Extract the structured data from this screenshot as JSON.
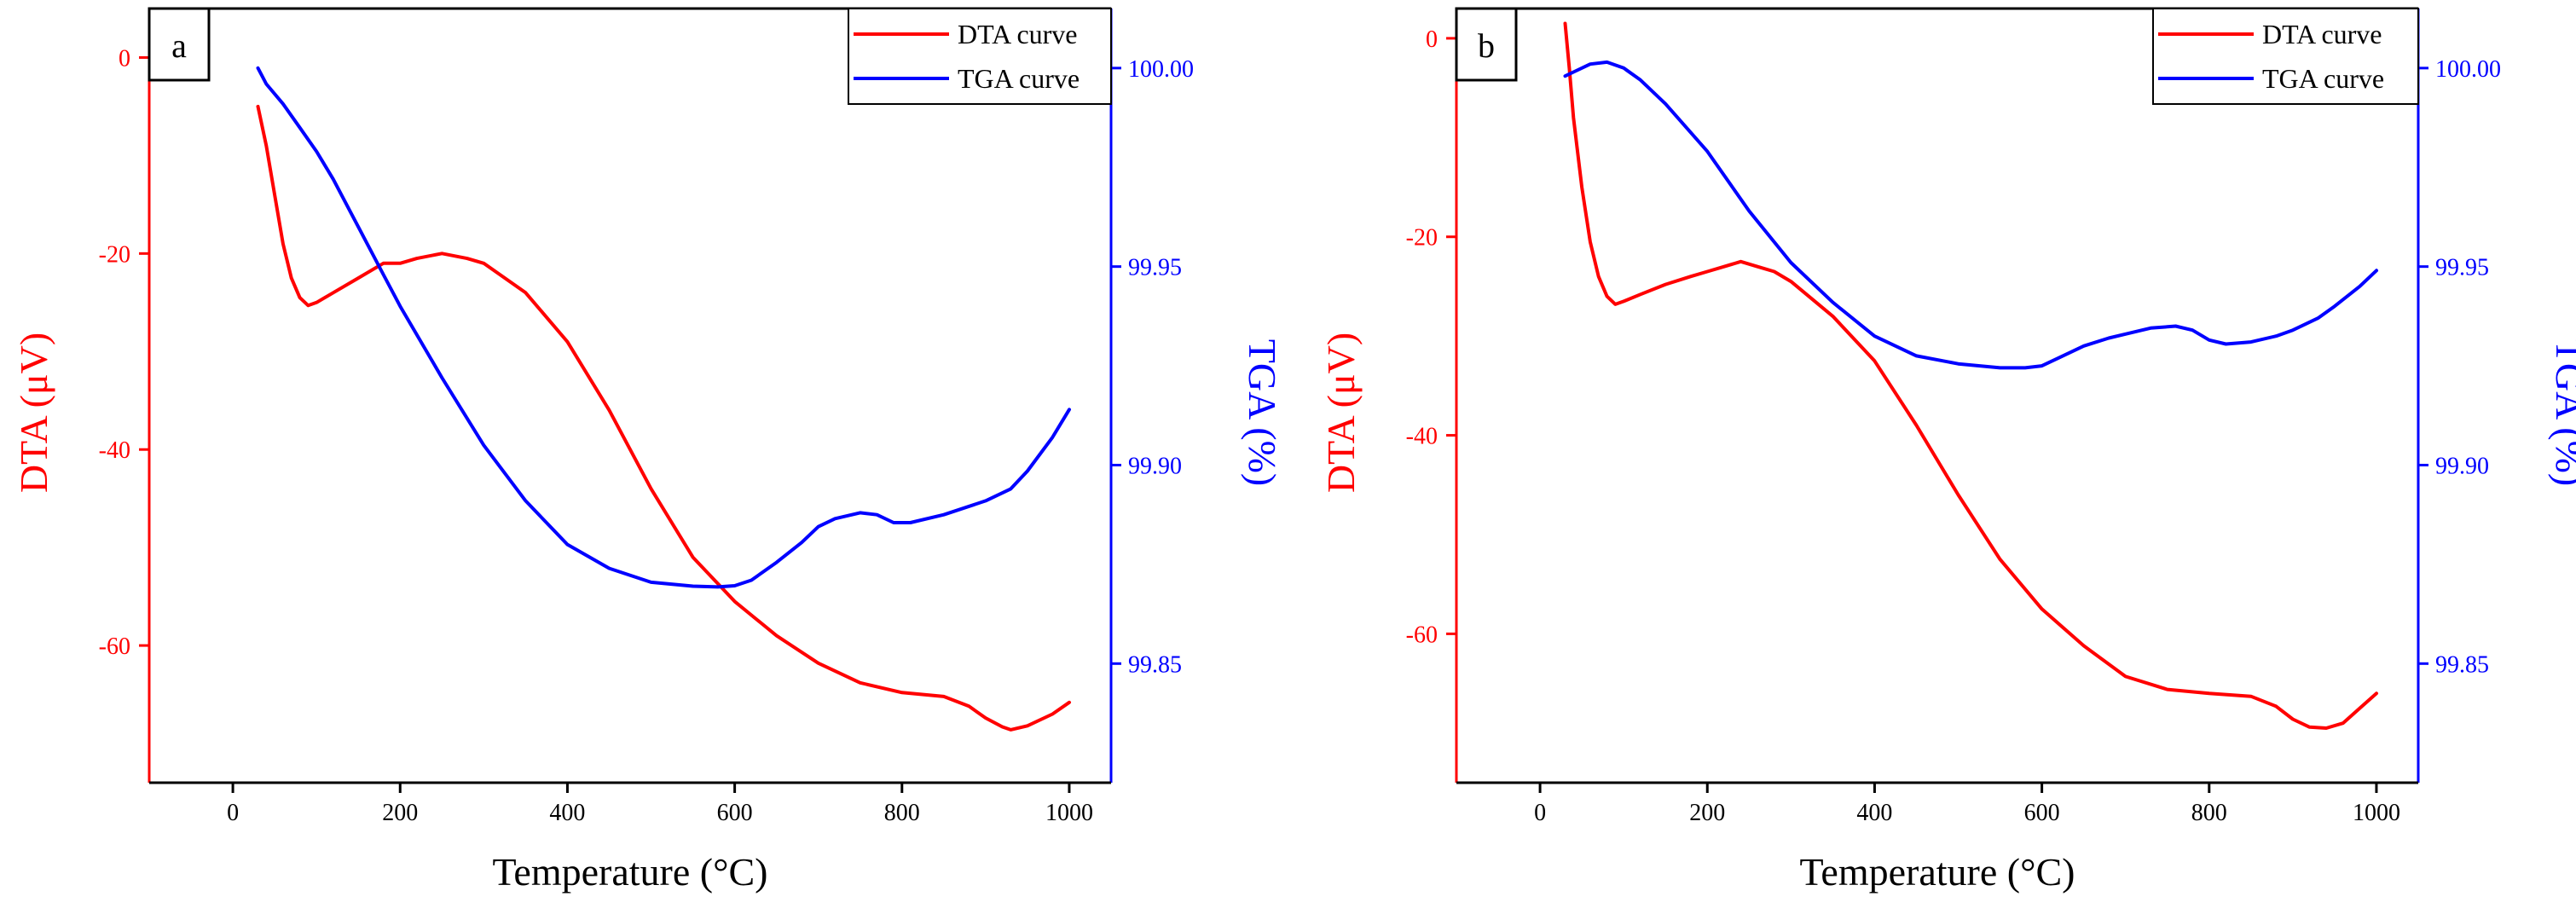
{
  "colors": {
    "dta": "#ff0000",
    "tga": "#0000ff",
    "axis": "#000000",
    "frame": "#000000"
  },
  "chart_data": [
    {
      "type": "line",
      "panel_label": "a",
      "xlabel": "Temperature (°C)",
      "ylabel_left": "DTA (μV)",
      "ylabel_right": "TGA (%)",
      "xlim": [
        -100,
        1050
      ],
      "ylim_left": [
        -74,
        5
      ],
      "ylim_right": [
        99.82,
        100.015
      ],
      "xticks": [
        0,
        200,
        400,
        600,
        800,
        1000
      ],
      "yticks_left": [
        0,
        -20,
        -40,
        -60
      ],
      "yticks_right": [
        "100.00",
        "99.95",
        "99.90",
        "99.85"
      ],
      "legend_position": "top-right",
      "series": [
        {
          "name": "DTA curve",
          "axis": "left",
          "x": [
            30,
            40,
            50,
            60,
            70,
            80,
            90,
            100,
            120,
            150,
            180,
            200,
            220,
            250,
            280,
            300,
            350,
            400,
            450,
            500,
            550,
            600,
            650,
            700,
            750,
            800,
            850,
            880,
            900,
            920,
            930,
            950,
            980,
            1000
          ],
          "y": [
            -5,
            -9,
            -14,
            -19,
            -22.5,
            -24.5,
            -25.3,
            -25,
            -24,
            -22.5,
            -21,
            -21,
            -20.5,
            -20,
            -20.5,
            -21,
            -24,
            -29,
            -36,
            -44,
            -51,
            -55.5,
            -59,
            -61.8,
            -63.8,
            -64.8,
            -65.2,
            -66.2,
            -67.4,
            -68.3,
            -68.6,
            -68.2,
            -67,
            -65.8
          ]
        },
        {
          "name": "TGA curve",
          "axis": "right",
          "x": [
            30,
            40,
            60,
            80,
            100,
            120,
            150,
            180,
            200,
            250,
            300,
            350,
            400,
            450,
            500,
            550,
            580,
            600,
            620,
            650,
            680,
            700,
            720,
            750,
            770,
            790,
            810,
            850,
            900,
            930,
            950,
            980,
            1000
          ],
          "y": [
            100.0,
            99.996,
            99.991,
            99.985,
            99.979,
            99.972,
            99.96,
            99.948,
            99.94,
            99.922,
            99.905,
            99.891,
            99.88,
            99.874,
            99.8705,
            99.8695,
            99.8693,
            99.8696,
            99.871,
            99.8755,
            99.8805,
            99.8845,
            99.8865,
            99.888,
            99.8875,
            99.8855,
            99.8855,
            99.8875,
            99.891,
            99.894,
            99.8985,
            99.907,
            99.914
          ]
        }
      ]
    },
    {
      "type": "line",
      "panel_label": "b",
      "xlabel": "Temperature (°C)",
      "ylabel_left": "DTA (μV)",
      "ylabel_right": "TGA (%)",
      "xlim": [
        -100,
        1050
      ],
      "ylim_left": [
        -75,
        3
      ],
      "ylim_right": [
        99.82,
        100.015
      ],
      "xticks": [
        0,
        200,
        400,
        600,
        800,
        1000
      ],
      "yticks_left": [
        0,
        -20,
        -40,
        -60
      ],
      "yticks_right": [
        "100.00",
        "99.95",
        "99.90",
        "99.85"
      ],
      "legend_position": "top-right",
      "series": [
        {
          "name": "DTA curve",
          "axis": "left",
          "x": [
            30,
            35,
            40,
            50,
            60,
            70,
            80,
            90,
            100,
            120,
            150,
            180,
            200,
            220,
            240,
            260,
            280,
            300,
            350,
            400,
            450,
            500,
            550,
            600,
            650,
            700,
            750,
            800,
            850,
            880,
            900,
            920,
            940,
            960,
            980,
            1000
          ],
          "y": [
            1.5,
            -3,
            -8,
            -15,
            -20.5,
            -24,
            -26,
            -26.8,
            -26.5,
            -25.8,
            -24.8,
            -24,
            -23.5,
            -23,
            -22.5,
            -23,
            -23.5,
            -24.5,
            -28,
            -32.5,
            -39,
            -46,
            -52.5,
            -57.5,
            -61.2,
            -64.3,
            -65.6,
            -66,
            -66.3,
            -67.3,
            -68.6,
            -69.4,
            -69.5,
            -69,
            -67.5,
            -66
          ]
        },
        {
          "name": "TGA curve",
          "axis": "right",
          "x": [
            30,
            40,
            60,
            80,
            100,
            120,
            150,
            200,
            250,
            300,
            350,
            400,
            450,
            500,
            550,
            580,
            600,
            620,
            650,
            680,
            700,
            730,
            760,
            780,
            800,
            820,
            850,
            880,
            900,
            930,
            950,
            980,
            1000
          ],
          "y": [
            99.998,
            99.999,
            100.001,
            100.0015,
            100.0,
            99.997,
            99.991,
            99.979,
            99.964,
            99.951,
            99.941,
            99.9325,
            99.9275,
            99.9255,
            99.9245,
            99.9245,
            99.925,
            99.927,
            99.93,
            99.932,
            99.933,
            99.9345,
            99.935,
            99.934,
            99.9315,
            99.9305,
            99.931,
            99.9325,
            99.934,
            99.937,
            99.94,
            99.945,
            99.949
          ]
        }
      ]
    }
  ]
}
